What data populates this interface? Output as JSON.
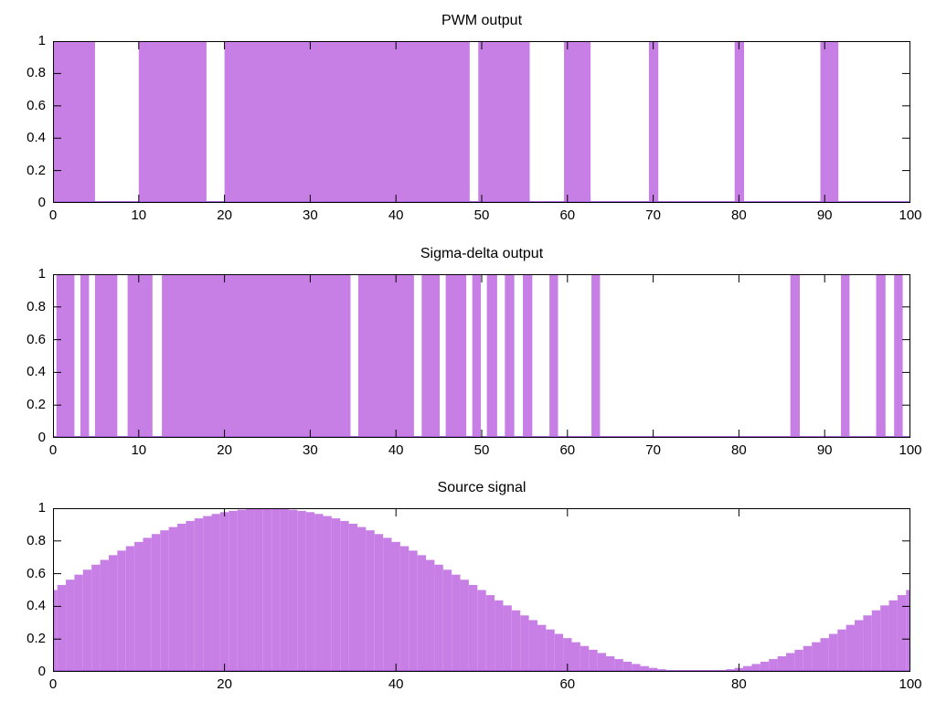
{
  "page": {
    "background": "#ffffff"
  },
  "style": {
    "fill_color": "#c77fe6",
    "baseline_color": "#a763dc",
    "axis_color": "#000000",
    "text_color": "#000000"
  },
  "chart_data": [
    {
      "type": "area",
      "subtype": "pulse-train",
      "title": "PWM output",
      "xlim": [
        0,
        100
      ],
      "ylim": [
        0,
        1
      ],
      "x_ticks": [
        0,
        10,
        20,
        30,
        40,
        50,
        60,
        70,
        80,
        90,
        100
      ],
      "x_tick_labels": [
        "0",
        "10",
        "20",
        "30",
        "40",
        "50",
        "60",
        "70",
        "80",
        "90",
        "100"
      ],
      "y_ticks": [
        0,
        0.2,
        0.4,
        0.6,
        0.8,
        1
      ],
      "y_tick_labels": [
        "0",
        "0.2",
        "0.4",
        "0.6",
        "0.8",
        "1"
      ],
      "high_value": 1,
      "low_value": 0,
      "grid": false,
      "legend": "none",
      "high_intervals": [
        [
          0,
          4.9
        ],
        [
          10,
          17.9
        ],
        [
          20,
          48.6
        ],
        [
          49.6,
          55.6
        ],
        [
          59.6,
          62.7
        ],
        [
          69.5,
          70.6
        ],
        [
          79.5,
          80.6
        ],
        [
          89.5,
          91.6
        ]
      ]
    },
    {
      "type": "area",
      "subtype": "pulse-train",
      "title": "Sigma-delta output",
      "xlim": [
        0,
        100
      ],
      "ylim": [
        0,
        1
      ],
      "x_ticks": [
        0,
        10,
        20,
        30,
        40,
        50,
        60,
        70,
        80,
        90,
        100
      ],
      "x_tick_labels": [
        "0",
        "10",
        "20",
        "30",
        "40",
        "50",
        "60",
        "70",
        "80",
        "90",
        "100"
      ],
      "y_ticks": [
        0,
        0.2,
        0.4,
        0.6,
        0.8,
        1
      ],
      "y_tick_labels": [
        "0",
        "0.2",
        "0.4",
        "0.6",
        "0.8",
        "1"
      ],
      "high_value": 1,
      "low_value": 0,
      "grid": false,
      "legend": "none",
      "high_intervals": [
        [
          0.4,
          2.5
        ],
        [
          3.2,
          4.2
        ],
        [
          4.9,
          7.5
        ],
        [
          8.7,
          11.6
        ],
        [
          12.7,
          34.7
        ],
        [
          35.6,
          42.1
        ],
        [
          43.0,
          45.1
        ],
        [
          45.8,
          48.2
        ],
        [
          48.9,
          49.9
        ],
        [
          50.6,
          51.8
        ],
        [
          52.7,
          53.8
        ],
        [
          54.8,
          55.9
        ],
        [
          57.9,
          58.9
        ],
        [
          62.8,
          63.8
        ],
        [
          86.0,
          87.1
        ],
        [
          91.9,
          92.9
        ],
        [
          96.0,
          97.1
        ],
        [
          98.1,
          99.1
        ]
      ]
    },
    {
      "type": "bar",
      "subtype": "staircase-boxes",
      "title": "Source signal",
      "xlim": [
        0,
        100
      ],
      "ylim": [
        0,
        1
      ],
      "x_ticks": [
        0,
        20,
        40,
        60,
        80,
        100
      ],
      "x_tick_labels": [
        "0",
        "20",
        "40",
        "60",
        "80",
        "100"
      ],
      "y_ticks": [
        0,
        0.2,
        0.4,
        0.6,
        0.8,
        1
      ],
      "y_tick_labels": [
        "0",
        "0.2",
        "0.4",
        "0.6",
        "0.8",
        "1"
      ],
      "box_width": 1,
      "grid": false,
      "legend": "none",
      "x": [
        0,
        1,
        2,
        3,
        4,
        5,
        6,
        7,
        8,
        9,
        10,
        11,
        12,
        13,
        14,
        15,
        16,
        17,
        18,
        19,
        20,
        21,
        22,
        23,
        24,
        25,
        26,
        27,
        28,
        29,
        30,
        31,
        32,
        33,
        34,
        35,
        36,
        37,
        38,
        39,
        40,
        41,
        42,
        43,
        44,
        45,
        46,
        47,
        48,
        49,
        50,
        51,
        52,
        53,
        54,
        55,
        56,
        57,
        58,
        59,
        60,
        61,
        62,
        63,
        64,
        65,
        66,
        67,
        68,
        69,
        70,
        71,
        72,
        73,
        74,
        75,
        76,
        77,
        78,
        79,
        80,
        81,
        82,
        83,
        84,
        85,
        86,
        87,
        88,
        89,
        90,
        91,
        92,
        93,
        94,
        95,
        96,
        97,
        98,
        99,
        100
      ],
      "values": [
        0.5,
        0.531,
        0.563,
        0.594,
        0.624,
        0.655,
        0.684,
        0.713,
        0.741,
        0.768,
        0.794,
        0.819,
        0.842,
        0.865,
        0.885,
        0.905,
        0.922,
        0.938,
        0.952,
        0.965,
        0.976,
        0.984,
        0.991,
        0.996,
        0.999,
        1.0,
        0.999,
        0.996,
        0.991,
        0.984,
        0.976,
        0.965,
        0.952,
        0.938,
        0.922,
        0.905,
        0.885,
        0.865,
        0.842,
        0.819,
        0.794,
        0.768,
        0.741,
        0.713,
        0.684,
        0.655,
        0.624,
        0.594,
        0.563,
        0.531,
        0.5,
        0.469,
        0.437,
        0.406,
        0.376,
        0.345,
        0.316,
        0.287,
        0.259,
        0.232,
        0.206,
        0.181,
        0.158,
        0.135,
        0.115,
        0.095,
        0.078,
        0.062,
        0.048,
        0.035,
        0.024,
        0.016,
        0.009,
        0.004,
        0.001,
        0.0,
        0.001,
        0.004,
        0.009,
        0.016,
        0.024,
        0.035,
        0.048,
        0.062,
        0.078,
        0.095,
        0.115,
        0.135,
        0.158,
        0.181,
        0.206,
        0.232,
        0.259,
        0.287,
        0.316,
        0.345,
        0.376,
        0.406,
        0.437,
        0.469,
        0.5
      ]
    }
  ]
}
